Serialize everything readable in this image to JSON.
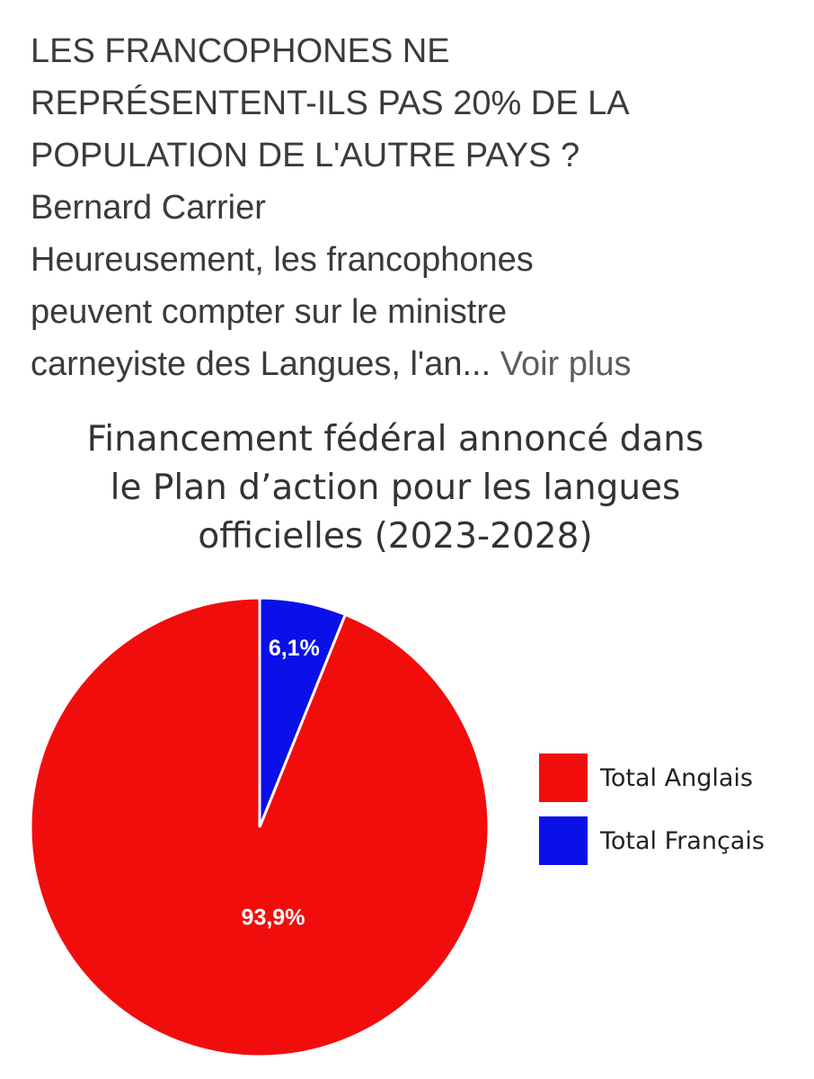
{
  "post": {
    "headline_lines": [
      "LES FRANCOPHONES NE",
      "REPRÉSENTENT-ILS PAS 20% DE LA",
      "POPULATION DE L'AUTRE PAYS ?"
    ],
    "author": "Bernard Carrier",
    "body_lines": [
      "Heureusement, les francophones",
      "peuvent compter sur le ministre",
      "carneyiste des Langues, l'an..."
    ],
    "see_more": "Voir plus"
  },
  "chart_data": {
    "type": "pie",
    "title_lines": [
      "Financement fédéral annoncé dans",
      "le Plan d’action pour les langues",
      "officielles (2023-2028)"
    ],
    "slices": [
      {
        "name": "Total Français",
        "value": 6.1,
        "label": "6,1%",
        "color": "#0a10e8"
      },
      {
        "name": "Total Anglais",
        "value": 93.9,
        "label": "93,9%",
        "color": "#f20d0d"
      }
    ],
    "legend_order": [
      "Total Anglais",
      "Total Français"
    ],
    "legend_colors": [
      "#f20d0d",
      "#0a10e8"
    ],
    "legend_position": "right"
  }
}
